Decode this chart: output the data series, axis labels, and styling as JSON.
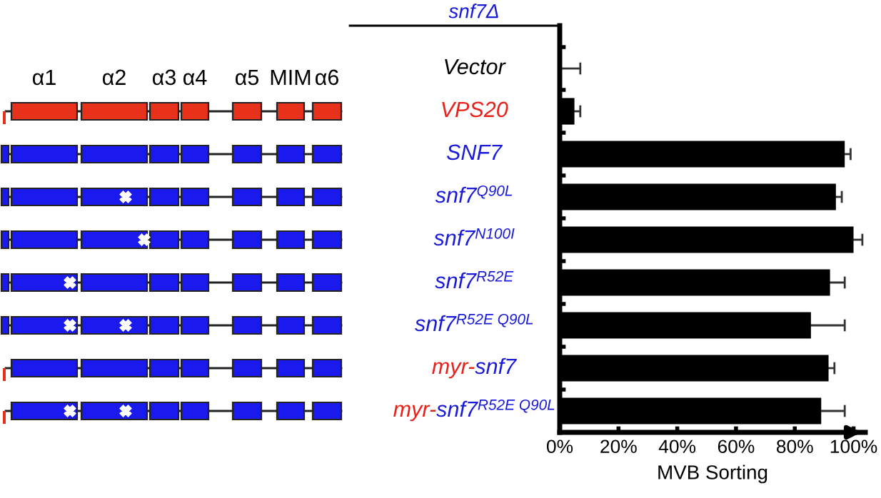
{
  "chart_data": {
    "type": "bar",
    "orientation": "horizontal",
    "categories": [
      "Vector",
      "VPS20",
      "SNF7",
      "snf7$^{Q90L}$",
      "snf7$^{N100I}$",
      "snf7$^{R52E}$",
      "snf7$^{R52E Q90L}$",
      "myr-snf7",
      "myr-snf7$^{R52E Q90L}$"
    ],
    "values": [
      0,
      5,
      97,
      94,
      100,
      92,
      85.5,
      91.5,
      89
    ],
    "errors": [
      [
        0,
        7
      ],
      2,
      2,
      2,
      3,
      5,
      11.5,
      2,
      8
    ],
    "color": "#000000",
    "xlim": [
      0,
      104
    ],
    "xticks": [
      {
        "value": 0,
        "label": "0%"
      },
      {
        "value": 20,
        "label": "20%"
      },
      {
        "value": 40,
        "label": "40%"
      },
      {
        "value": 60,
        "label": "60%"
      },
      {
        "value": 80,
        "label": "80%"
      },
      {
        "value": 100,
        "label": "100%"
      }
    ],
    "xlabel": "MVB Sorting",
    "annotations": [
      "snf7Δ",
      "α1",
      "α2",
      "α3",
      "α4",
      "α5",
      "MIM",
      "α6"
    ],
    "grid": false,
    "legend": false
  }
}
